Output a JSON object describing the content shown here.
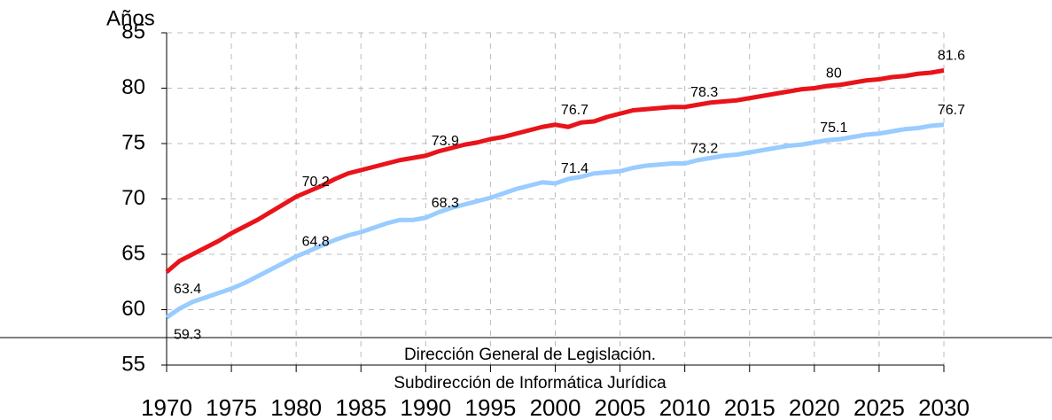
{
  "chart_data": {
    "type": "line",
    "y_label": "Años",
    "annotations": [
      "Dirección General de Legislación.",
      "Subdirección de Informática Jurídica"
    ],
    "x": [
      1970,
      1971,
      1972,
      1973,
      1974,
      1975,
      1976,
      1977,
      1978,
      1979,
      1980,
      1981,
      1982,
      1983,
      1984,
      1985,
      1986,
      1987,
      1988,
      1989,
      1990,
      1991,
      1992,
      1993,
      1994,
      1995,
      1996,
      1997,
      1998,
      1999,
      2000,
      2001,
      2002,
      2003,
      2004,
      2005,
      2006,
      2007,
      2008,
      2009,
      2010,
      2011,
      2012,
      2013,
      2014,
      2015,
      2016,
      2017,
      2018,
      2019,
      2020,
      2021,
      2022,
      2023,
      2024,
      2025,
      2026,
      2027,
      2028,
      2029,
      2030
    ],
    "series": [
      {
        "color": "#e8141a",
        "values": [
          63.4,
          64.4,
          65.0,
          65.6,
          66.2,
          66.9,
          67.5,
          68.1,
          68.8,
          69.5,
          70.2,
          70.7,
          71.2,
          71.8,
          72.3,
          72.6,
          72.9,
          73.2,
          73.5,
          73.7,
          73.9,
          74.3,
          74.6,
          74.9,
          75.1,
          75.4,
          75.6,
          75.9,
          76.2,
          76.5,
          76.7,
          76.5,
          76.9,
          77.0,
          77.4,
          77.7,
          78.0,
          78.1,
          78.2,
          78.3,
          78.3,
          78.5,
          78.7,
          78.8,
          78.9,
          79.1,
          79.3,
          79.5,
          79.7,
          79.9,
          80.0,
          80.2,
          80.3,
          80.5,
          80.7,
          80.8,
          81.0,
          81.1,
          81.3,
          81.4,
          81.6
        ]
      },
      {
        "color": "#99ccff",
        "values": [
          59.3,
          60.1,
          60.7,
          61.1,
          61.5,
          61.9,
          62.4,
          63.0,
          63.6,
          64.2,
          64.8,
          65.3,
          65.8,
          66.3,
          66.7,
          67.0,
          67.4,
          67.8,
          68.1,
          68.1,
          68.3,
          68.8,
          69.2,
          69.5,
          69.8,
          70.1,
          70.5,
          70.9,
          71.2,
          71.5,
          71.4,
          71.8,
          72.0,
          72.3,
          72.4,
          72.5,
          72.8,
          73.0,
          73.1,
          73.2,
          73.2,
          73.5,
          73.7,
          73.9,
          74.0,
          74.2,
          74.4,
          74.6,
          74.8,
          74.9,
          75.1,
          75.3,
          75.4,
          75.6,
          75.8,
          75.9,
          76.1,
          76.3,
          76.4,
          76.6,
          76.7
        ]
      }
    ],
    "xlim": [
      1970,
      2030
    ],
    "xticks": [
      1970,
      1975,
      1980,
      1985,
      1990,
      1995,
      2000,
      2005,
      2010,
      2015,
      2020,
      2025,
      2030
    ],
    "ylim": [
      55,
      85
    ],
    "yticks": [
      55,
      60,
      65,
      70,
      75,
      80,
      85
    ],
    "grid": true
  }
}
